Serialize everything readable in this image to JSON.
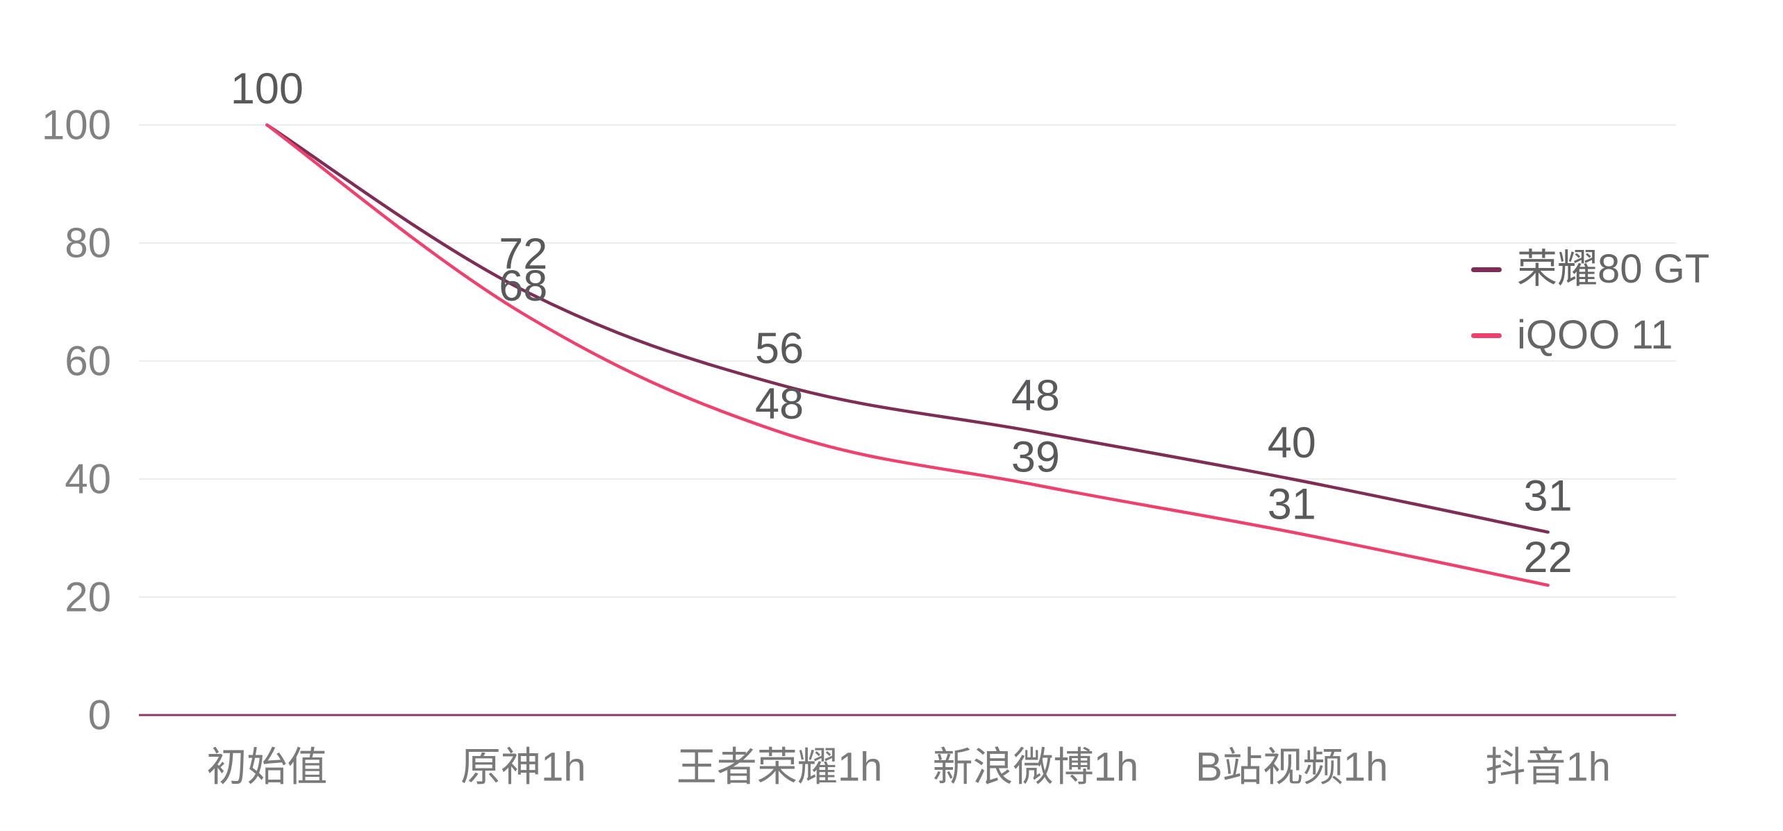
{
  "chart_data": {
    "type": "line",
    "title": "",
    "categories": [
      "初始值",
      "原神1h",
      "王者荣耀1h",
      "新浪微博1h",
      "B站视频1h",
      "抖音1h"
    ],
    "series": [
      {
        "name": "荣耀80 GT",
        "values": [
          100,
          72,
          56,
          48,
          40,
          31
        ],
        "color": "#7E2D54"
      },
      {
        "name": "iQOO 11",
        "values": [
          100,
          68,
          48,
          39,
          31,
          22
        ],
        "color": "#EF416D"
      }
    ],
    "xlabel": "",
    "ylabel": "",
    "ylim": [
      0,
      100
    ],
    "yticks": [
      0,
      20,
      40,
      60,
      80,
      100
    ],
    "grid": true,
    "smooth": true,
    "data_labels_shown": true,
    "legend_position": "right",
    "colors": {
      "grid_line": "#ededed",
      "zero_axis_line": "#8A3A64",
      "y_tick_label": "#818181",
      "x_tick_label": "#7a7a7a",
      "data_label": "#59595b",
      "legend_text": "#666666",
      "background": "#ffffff"
    }
  }
}
